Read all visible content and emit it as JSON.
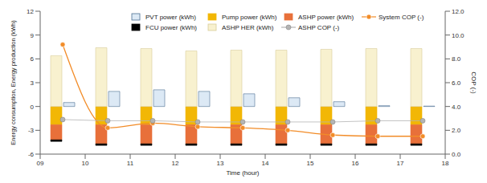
{
  "chart_data": {
    "type": "bar",
    "x_label": "Time (hour)",
    "y_label": "Energy consumption, Energy production (kWh)",
    "y2_label": "COP (-)",
    "x": [
      9.5,
      10.5,
      11.5,
      12.5,
      13.5,
      14.5,
      15.5,
      16.5,
      17.5
    ],
    "xlim": [
      9,
      18
    ],
    "xticks": [
      {
        "value": 9,
        "label": "09"
      },
      10,
      11,
      12,
      13,
      14,
      15,
      16,
      17,
      18
    ],
    "ylim": [
      -6,
      12
    ],
    "yticks": [
      -6,
      -3,
      0,
      3,
      6,
      9,
      12
    ],
    "y2lim": [
      0,
      12
    ],
    "y2ticks": [
      {
        "value": 0,
        "label": "0.0"
      },
      {
        "value": 2,
        "label": "2.0"
      },
      {
        "value": 4,
        "label": "4.0"
      },
      {
        "value": 6,
        "label": "6.0"
      },
      {
        "value": 8,
        "label": "8.0"
      },
      {
        "value": 10,
        "label": "10.0"
      },
      {
        "value": 12,
        "label": "12.0"
      }
    ],
    "stacked": true,
    "grid": false,
    "legend": "top",
    "series": [
      {
        "name": "Pump power (kWh)",
        "type": "bar",
        "color": "#f2b705",
        "values": [
          -2.3,
          -2.3,
          -2.3,
          -2.3,
          -2.3,
          -2.3,
          -2.3,
          -2.3,
          -2.3
        ]
      },
      {
        "name": "ASHP power (kWh)",
        "type": "bar",
        "color": "#e8703a",
        "values": [
          -1.9,
          -2.4,
          -2.4,
          -2.4,
          -2.4,
          -2.4,
          -2.4,
          -2.4,
          -2.4
        ]
      },
      {
        "name": "FCU power (kWh)",
        "type": "bar",
        "color": "#000000",
        "values": [
          -0.2,
          -0.2,
          -0.2,
          -0.2,
          -0.2,
          -0.2,
          -0.2,
          -0.2,
          -0.2
        ]
      },
      {
        "name": "ASHP HER (kWh)",
        "type": "bar",
        "color": "#f8f1cf",
        "values": [
          6.4,
          7.4,
          7.3,
          7.0,
          7.1,
          7.1,
          7.2,
          7.3,
          7.3
        ]
      },
      {
        "name": "PVT power (kWh)",
        "type": "bar",
        "color": "#dce9f5",
        "stacked": false,
        "values": [
          0.5,
          1.9,
          2.1,
          1.9,
          1.6,
          1.1,
          0.6,
          0.1,
          0.05
        ]
      },
      {
        "name": "System COP (-)",
        "type": "line",
        "axis": "y2",
        "color": "#f28c28",
        "marker": "circle",
        "values": [
          9.2,
          2.2,
          2.6,
          2.3,
          2.2,
          2.0,
          1.6,
          1.5,
          1.5
        ]
      },
      {
        "name": "ASHP COP (-)",
        "type": "line",
        "axis": "y2",
        "color": "#b4b4b4",
        "marker": "circle",
        "values": [
          2.9,
          2.8,
          2.8,
          2.7,
          2.7,
          2.7,
          2.7,
          2.8,
          2.8
        ]
      }
    ]
  }
}
